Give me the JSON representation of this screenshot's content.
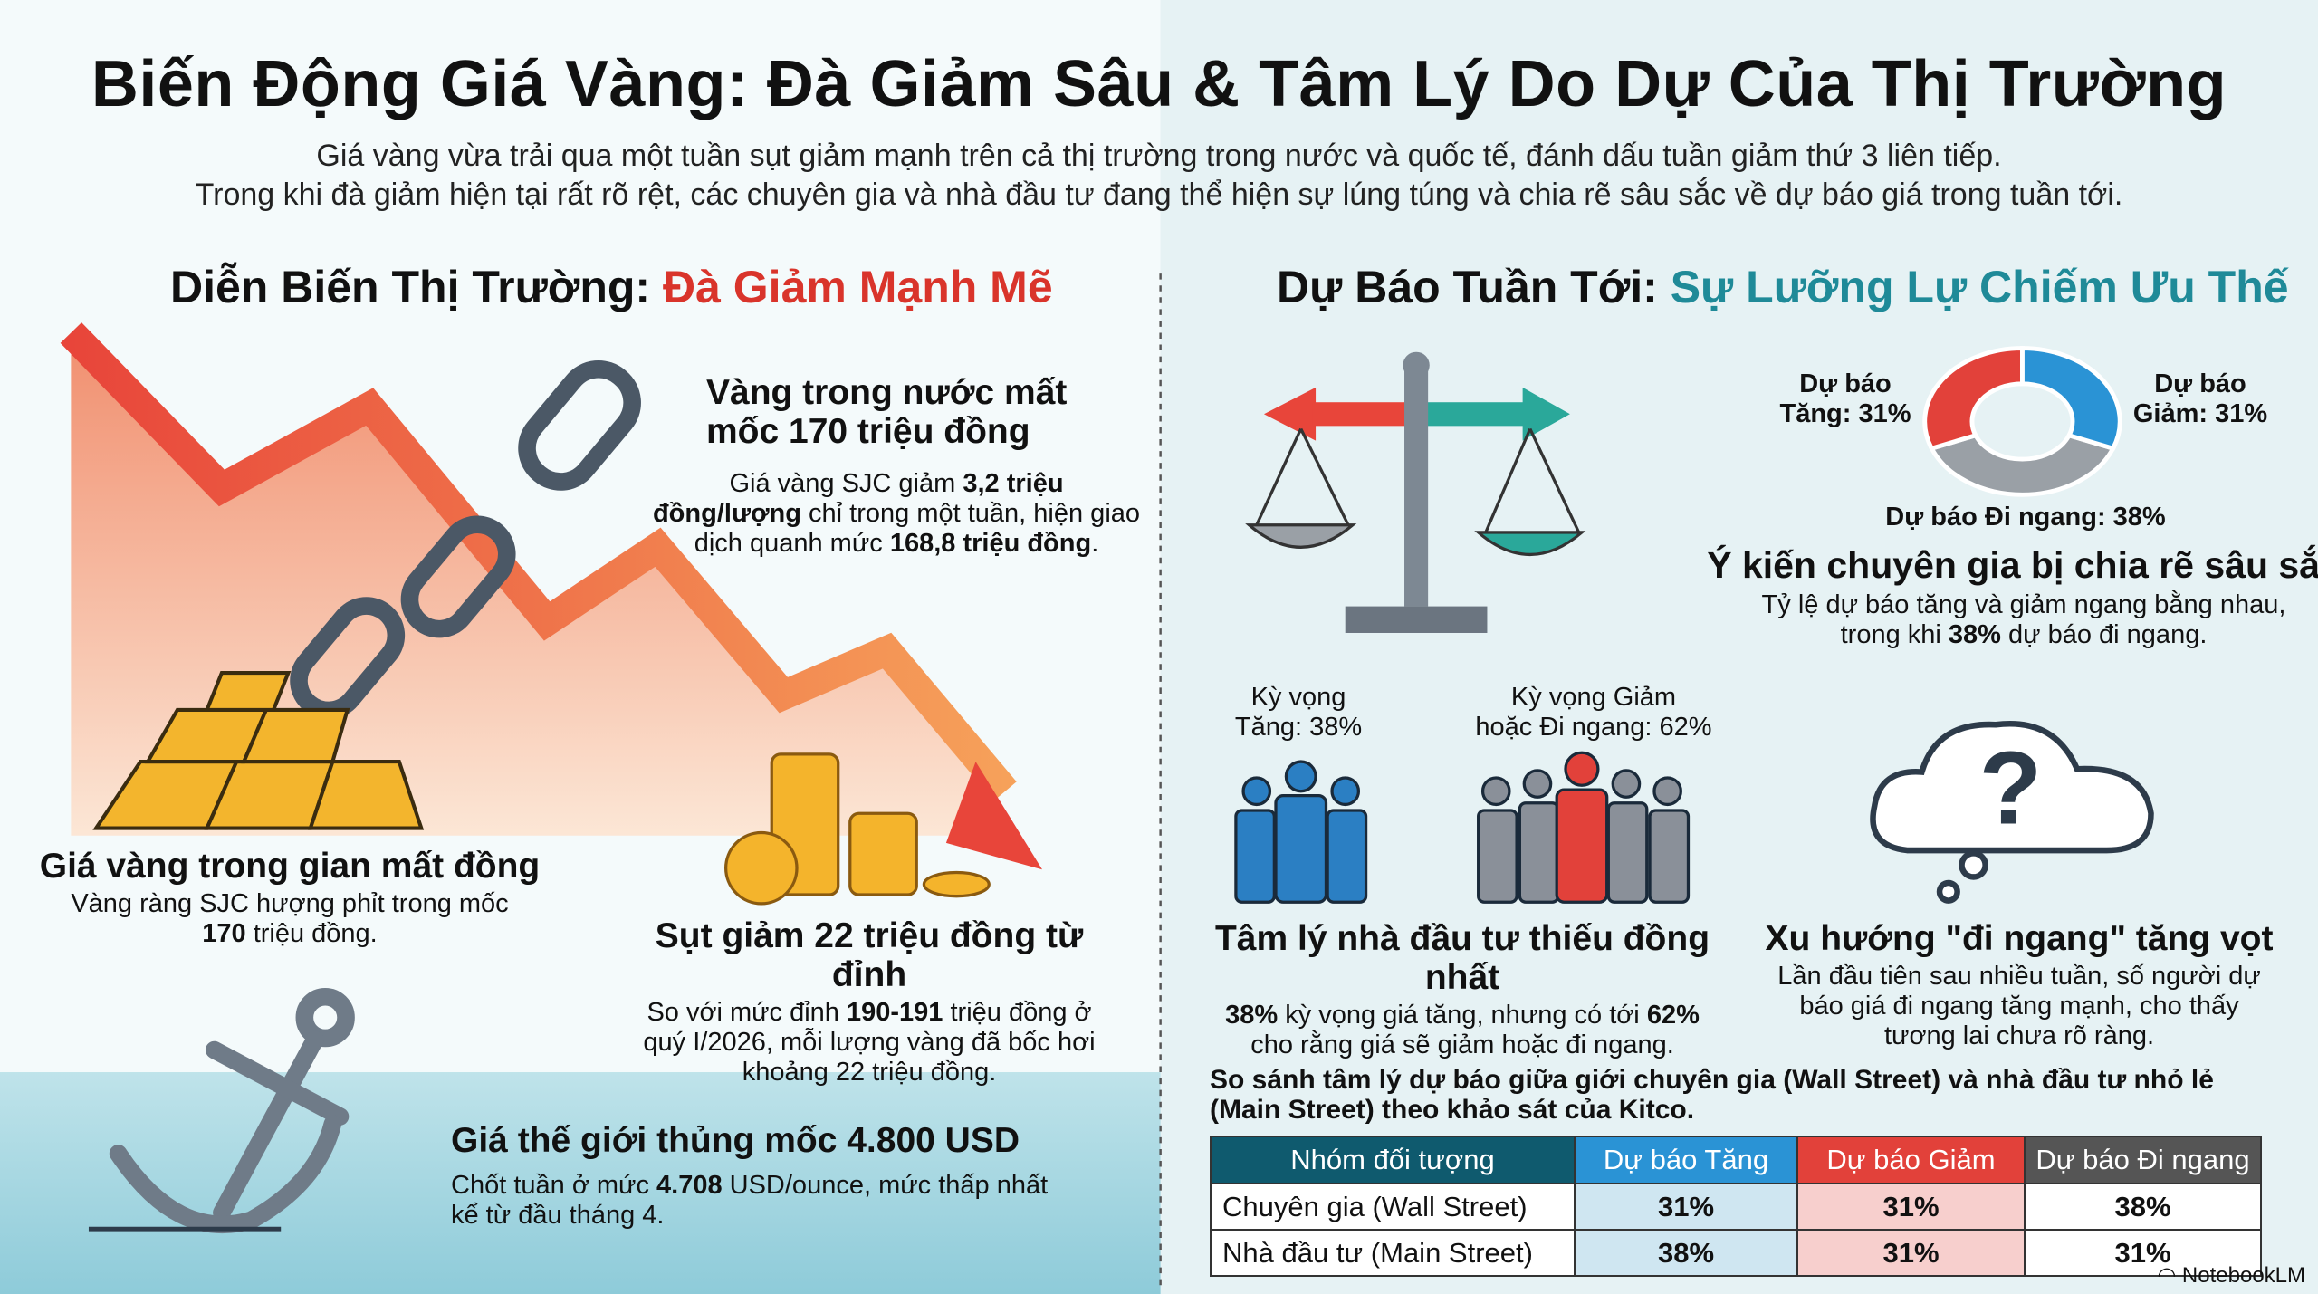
{
  "title": "Biến Động Giá Vàng: Đà Giảm Sâu & Tâm Lý Do Dự Của Thị Trường",
  "subtitle": [
    "Giá vàng vừa trải qua một tuần sụt giảm mạnh trên cả thị trường trong nước và quốc tế, đánh dấu tuần giảm thứ 3 liên tiếp.",
    "Trong khi đà giảm hiện tại rất rõ rệt, các chuyên gia và nhà đầu tư đang thể hiện sự lúng túng và chia rẽ sâu sắc về dự báo giá trong tuần tới."
  ],
  "left": {
    "heading_prefix": "Diễn Biến Thị Trường: ",
    "heading_accent": "Đà Giảm Mạnh Mẽ",
    "accent_color": "#d9342b",
    "cards": [
      {
        "title": "Vàng trong nước mất mốc 170 triệu đồng",
        "body_pre": "Giá vàng SJC giảm ",
        "body_b1": "3,2 triệu đồng/lượng",
        "body_mid": " chỉ trong một tuần, hiện giao dịch quanh mức ",
        "body_b2": "168,8 triệu đồng",
        "body_post": "."
      },
      {
        "title": "Giá vàng trong gian mất đồng",
        "body_pre": "Vàng ràng SJC hượng phỉt trong mốc ",
        "body_b1": "170",
        "body_post": " triệu đồng."
      },
      {
        "title": "Sụt giảm 22 triệu đồng từ đỉnh",
        "body_pre": "So với mức đỉnh ",
        "body_b1": "190-191",
        "body_post": " triệu đồng ở quý I/2026, mỗi lượng vàng đã bốc hơi khoảng 22 triệu đồng."
      },
      {
        "title": "Giá thế giới thủng mốc 4.800 USD",
        "body_pre": "Chốt tuần ở mức ",
        "body_b1": "4.708",
        "body_post": " USD/ounce, mức thấp nhất kể từ đầu tháng 4."
      }
    ]
  },
  "right": {
    "heading_prefix": "Dự Báo Tuần Tới: ",
    "heading_accent": "Sự Lưỡng Lự Chiếm Ưu Thế",
    "accent_color": "#1f8a98",
    "donut": {
      "up_label": "Dự báo\nTăng: 31%",
      "down_label": "Dự báo\nGiảm: 31%",
      "flat_label": "Dự báo Đi ngang: 38%",
      "values": {
        "up": 31,
        "down": 31,
        "flat": 38
      },
      "colors": {
        "up": "#2a93d5",
        "down": "#e2413a",
        "flat": "#9aa0a6"
      }
    },
    "experts": {
      "title": "Ý kiến chuyên gia bị chia rẽ sâu sắc",
      "body_pre": "Tỷ lệ dự báo tăng và giảm ngang bằng nhau, trong khi ",
      "body_b1": "38%",
      "body_post": " dự báo đi ngang."
    },
    "people_labels": {
      "up": "Kỳ vọng\nTăng: 38%",
      "down": "Kỳ vọng Giảm\nhoặc Đi ngang: 62%"
    },
    "investors": {
      "title": "Tâm lý nhà đầu tư thiếu đồng nhất",
      "body_b1": "38%",
      "body_mid": " kỳ vọng giá tăng, nhưng có tới ",
      "body_b2": "62%",
      "body_post": " cho rằng giá sẽ giảm hoặc đi ngang."
    },
    "trend": {
      "title": "Xu hướng \"đi ngang\" tăng vọt",
      "body": "Lần đầu tiên sau nhiều tuần, số người dự báo giá đi ngang tăng mạnh, cho thấy tương lai chưa rõ ràng."
    },
    "table_caption": "So sánh tâm lý dự báo giữa giới chuyên gia (Wall Street) và nhà đầu tư nhỏ lẻ (Main Street) theo khảo sát của Kitco.",
    "table": {
      "headers": [
        "Nhóm đối tượng",
        "Dự báo Tăng",
        "Dự báo Giảm",
        "Dự báo Đi ngang"
      ],
      "header_colors": [
        "#0f5a6e",
        "#2a93d5",
        "#e2413a",
        "#555555"
      ],
      "rows": [
        [
          "Chuyên gia (Wall Street)",
          "31%",
          "31%",
          "38%"
        ],
        [
          "Nhà đầu tư (Main Street)",
          "38%",
          "31%",
          "31%"
        ]
      ]
    }
  },
  "watermark": "NotebookLM"
}
